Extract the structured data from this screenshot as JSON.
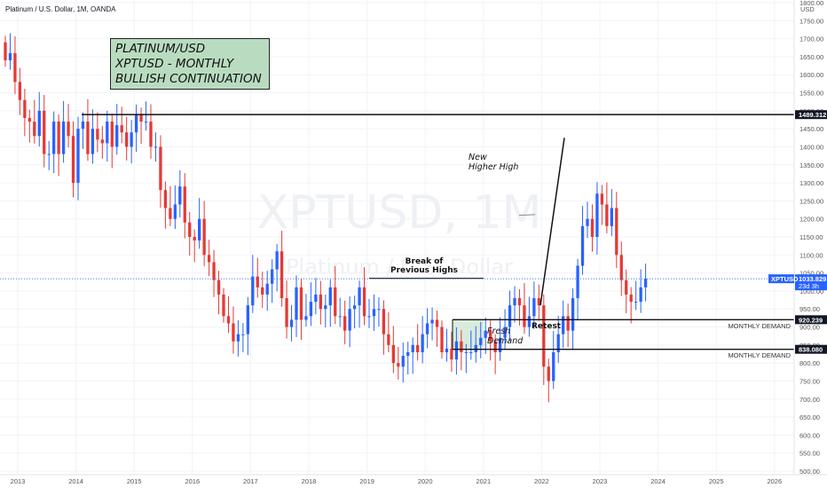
{
  "symbol_line": "Platinum / U.S. Dollar, 1M, OANDA",
  "axis_currency": "USD",
  "title_box": {
    "line1": "PLATINUM/USD",
    "line2": "XPTUSD - MONTHLY",
    "line3": "BULLISH CONTINUATION",
    "bg": "#b9dcc0"
  },
  "watermark": {
    "main": "XPTUSD, 1M",
    "sub": "Platinum / U.S. Dollar"
  },
  "colors": {
    "up": "#2962ff",
    "down": "#e53935",
    "axis": "#555555",
    "grid": "#f0f3fa"
  },
  "chart_data": {
    "type": "candlestick",
    "x_ticks": [
      "2013",
      "2014",
      "2015",
      "2016",
      "2017",
      "2018",
      "2019",
      "2020",
      "2021",
      "2022",
      "2023",
      "2024",
      "2025",
      "2026"
    ],
    "y_ticks": [
      500,
      550,
      600,
      650,
      700,
      750,
      800,
      850,
      900,
      950,
      1000,
      1050,
      1100,
      1150,
      1200,
      1250,
      1300,
      1350,
      1400,
      1450,
      1500,
      1550,
      1600,
      1650,
      1700,
      1750,
      1800
    ],
    "ylim": [
      500,
      1800
    ],
    "xlim": [
      "2012-12",
      "2026-07"
    ],
    "closes": [
      1640,
      1660,
      1580,
      1530,
      1480,
      1470,
      1430,
      1500,
      1380,
      1380,
      1470,
      1380,
      1470,
      1430,
      1300,
      1450,
      1470,
      1380,
      1450,
      1420,
      1410,
      1470,
      1400,
      1460,
      1440,
      1400,
      1440,
      1490,
      1470,
      1470,
      1400,
      1400,
      1280,
      1230,
      1200,
      1240,
      1290,
      1190,
      1150,
      1140,
      1200,
      1100,
      1080,
      1030,
      990,
      930,
      910,
      860,
      880,
      880,
      960,
      1040,
      1010,
      990,
      1020,
      1060,
      1110,
      980,
      900,
      920,
      1010,
      920,
      930,
      970,
      990,
      950,
      960,
      1010,
      930,
      930,
      890,
      950,
      960,
      1010,
      930,
      930,
      950,
      950,
      880,
      850,
      800,
      790,
      820,
      830,
      850,
      830,
      880,
      910,
      920,
      900,
      830,
      840,
      810,
      860,
      830,
      830,
      830,
      850,
      870,
      890,
      860,
      830,
      870,
      900,
      960,
      980,
      960,
      900,
      930,
      980,
      960,
      790,
      750,
      830,
      880,
      930,
      890,
      980,
      1070,
      1180,
      1200,
      1150,
      1270,
      1240,
      1180,
      1230,
      1100,
      1030,
      990,
      970,
      970,
      1010,
      1034
    ],
    "series": [
      {
        "name": "",
        "points": []
      }
    ],
    "levels": [
      {
        "label": "1489.312",
        "value": 1489.312
      },
      {
        "label": "920.239",
        "value": 920.239
      },
      {
        "label": "838.080",
        "value": 838.08
      }
    ],
    "last_price": {
      "label": "XPTUSD",
      "value": "1033.829",
      "countdown": "23d 3h"
    },
    "annotations": {
      "new_high": [
        "New",
        "Higher High"
      ],
      "break_highs": [
        "Break of",
        "Previous Highs"
      ],
      "fresh_demand": [
        "Fresh",
        "Demand"
      ],
      "retest": "Retest",
      "monthly_demand_1": "MONTHLY DEMAND",
      "monthly_demand_2": "MONTHLY DEMAND"
    }
  }
}
